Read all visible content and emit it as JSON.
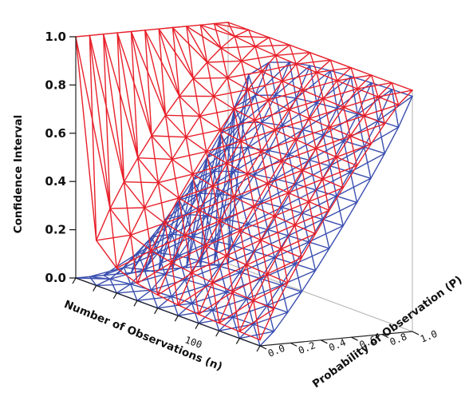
{
  "chart_data": {
    "type": "surface",
    "title": "",
    "xlabel": "Number of Observations (n)",
    "ylabel": "Probability of Observation (P)",
    "zlabel": "Confidence Interval",
    "x_ticks": [
      {
        "label": "100",
        "value": 100
      }
    ],
    "y_ticks": [
      "0.0",
      "0.2",
      "0.4",
      "0.6",
      "0.8",
      "1.0"
    ],
    "z_ticks": [
      "0.0",
      "0.2",
      "0.4",
      "0.6",
      "0.8",
      "1.0"
    ],
    "xlim": [
      0,
      150
    ],
    "ylim": [
      0,
      1
    ],
    "zlim": [
      0,
      1
    ],
    "series": [
      {
        "color": "#e8202a",
        "grid_resolution": [
          9,
          11
        ],
        "surface": "upper confidence limit"
      },
      {
        "color": "#3a4eb0",
        "grid_resolution": [
          9,
          11
        ],
        "surface": "lower confidence limit"
      }
    ]
  }
}
